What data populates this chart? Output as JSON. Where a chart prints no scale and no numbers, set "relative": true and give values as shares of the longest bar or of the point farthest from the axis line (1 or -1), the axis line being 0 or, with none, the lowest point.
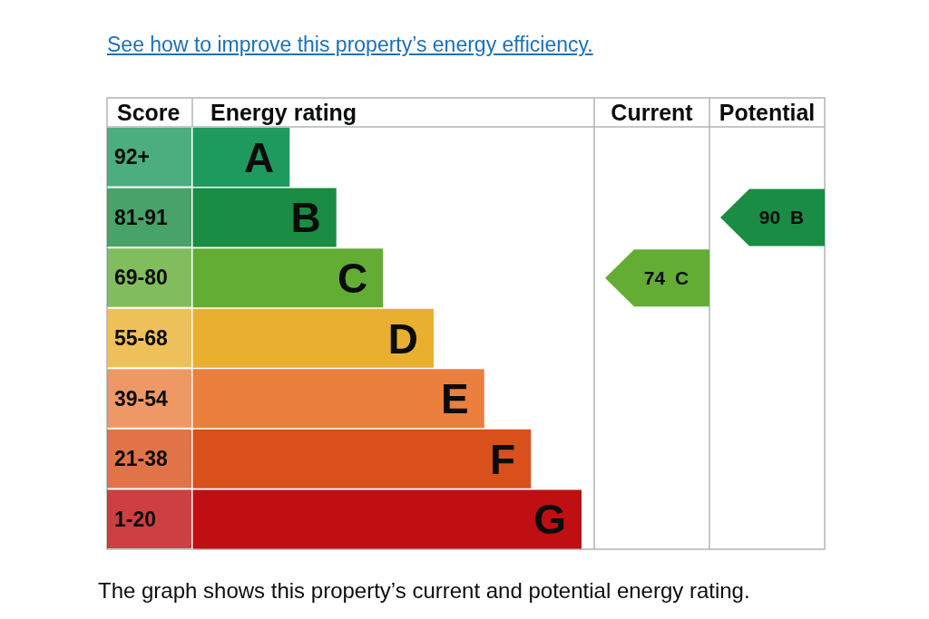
{
  "chart_data": [
    {
      "type": "bar",
      "orientation": "horizontal",
      "relative": true,
      "title": "See how to improve this property’s energy efficiency.",
      "ylabel": "Score",
      "xlabel": "Energy rating",
      "categories": [
        "92+",
        "81-91",
        "69-80",
        "55-68",
        "39-54",
        "21-38",
        "1-20"
      ],
      "values": [
        0.25,
        0.37,
        0.49,
        0.62,
        0.75,
        0.87,
        1
      ],
      "colors": [
        "#1f9a5e",
        "#1a8c43",
        "#63ad35",
        "#e9b030",
        "#ea7f3e",
        "#d9501b",
        "#c00f12"
      ],
      "annotations": [
        {
          "text": "A",
          "x": 0.25,
          "y": "92+"
        },
        {
          "text": "B",
          "x": 0.37,
          "y": "81-91"
        },
        {
          "text": "C",
          "x": 0.49,
          "y": "69-80"
        },
        {
          "text": "D",
          "x": 0.62,
          "y": "55-68"
        },
        {
          "text": "E",
          "x": 0.75,
          "y": "39-54"
        },
        {
          "text": "F",
          "x": 0.87,
          "y": "21-38"
        },
        {
          "text": "G",
          "x": 1,
          "y": "1-20"
        },
        "The graph shows this property’s current and potential energy rating."
      ]
    },
    {
      "type": "bar",
      "orientation": "horizontal",
      "title": "Current",
      "categories": [
        null,
        null,
        null,
        null,
        null,
        null,
        null
      ],
      "values": [
        null,
        null,
        74,
        null,
        null,
        null,
        null
      ],
      "color": "#63ad35",
      "value_labels": [
        null,
        null,
        "74 C",
        null,
        null,
        null,
        null
      ]
    },
    {
      "type": "bar",
      "orientation": "horizontal",
      "title": "Potential",
      "categories": [
        null,
        null,
        null,
        null,
        null,
        null,
        null
      ],
      "values": [
        null,
        90,
        null,
        null,
        null,
        null,
        null
      ],
      "color": "#1a8c43",
      "value_labels": [
        null,
        "90 B",
        null,
        null,
        null,
        null,
        null
      ]
    }
  ]
}
